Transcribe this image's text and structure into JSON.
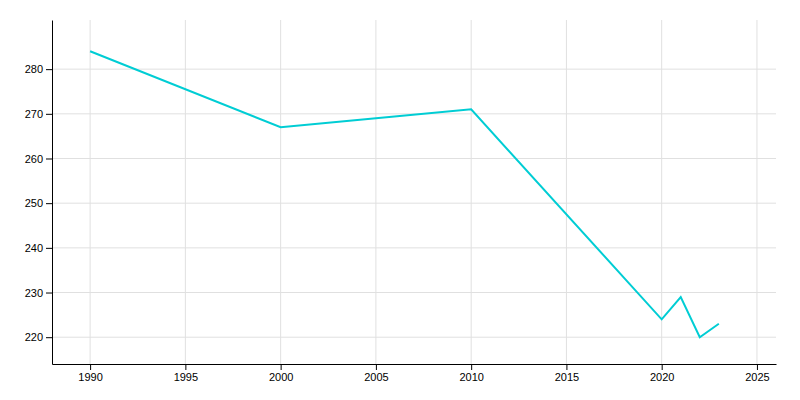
{
  "chart_data": {
    "type": "line",
    "x": [
      1990,
      2000,
      2005,
      2010,
      2020,
      2021,
      2022,
      2023
    ],
    "values": [
      284,
      267,
      269,
      271,
      224,
      229,
      220,
      223
    ],
    "color": "#00CDD4",
    "xlim": [
      1988,
      2026
    ],
    "ylim": [
      214,
      291
    ],
    "xticks": [
      1990,
      1995,
      2000,
      2005,
      2010,
      2015,
      2020,
      2025
    ],
    "yticks": [
      220,
      230,
      240,
      250,
      260,
      270,
      280
    ],
    "grid": true
  }
}
